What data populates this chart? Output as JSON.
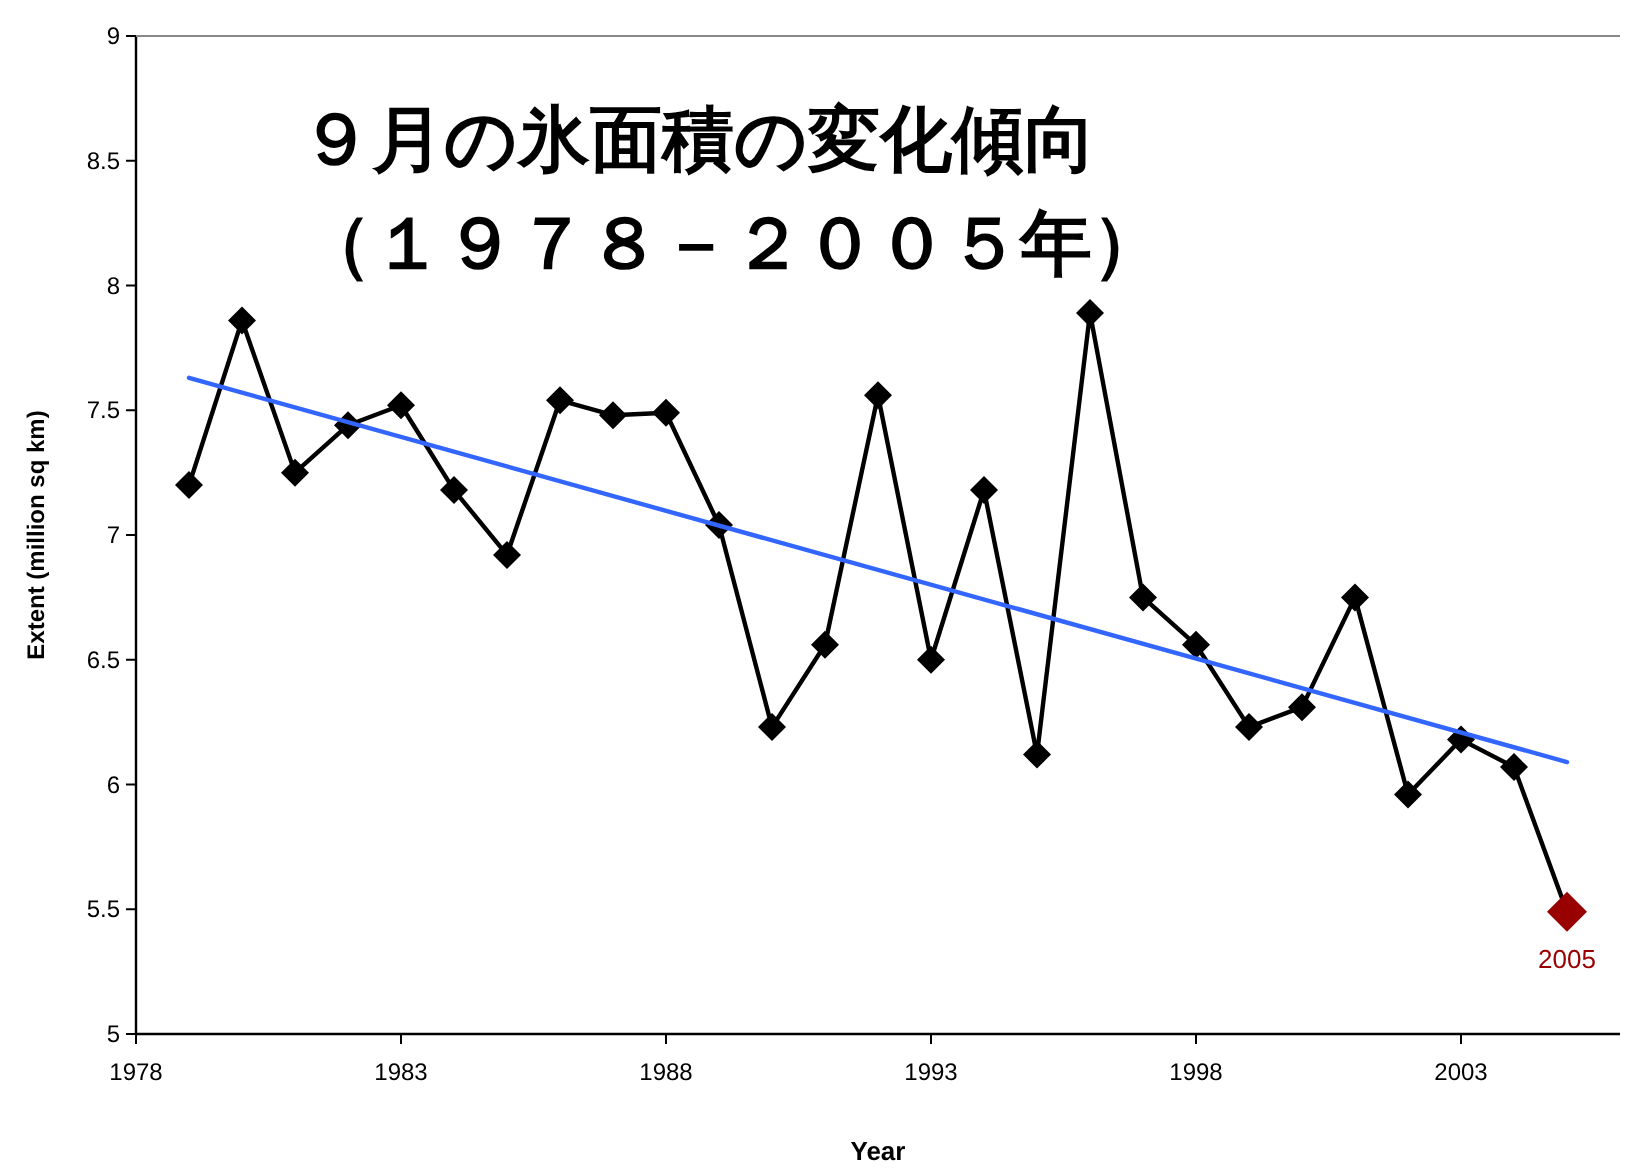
{
  "chart_data": {
    "type": "line",
    "title": "９月の氷面積の変化傾向",
    "subtitle": "（１９７８－２００５年）",
    "xlabel": "Year",
    "ylabel": "Extent (million sq km)",
    "xlim": [
      1978,
      2006
    ],
    "xticks": [
      1978,
      1983,
      1988,
      1993,
      1998,
      2003
    ],
    "ylim": [
      5,
      9
    ],
    "yticks": [
      5,
      5.5,
      6,
      6.5,
      7,
      7.5,
      8,
      8.5,
      9
    ],
    "marker": "diamond",
    "grid": false,
    "series": [
      {
        "color": "#000000",
        "x": [
          1979,
          1980,
          1981,
          1982,
          1983,
          1984,
          1985,
          1986,
          1987,
          1988,
          1989,
          1990,
          1991,
          1992,
          1993,
          1994,
          1995,
          1996,
          1997,
          1998,
          1999,
          2000,
          2001,
          2002,
          2003,
          2004,
          2005
        ],
        "values": [
          7.2,
          7.86,
          7.25,
          7.44,
          7.52,
          7.18,
          6.92,
          7.54,
          7.48,
          7.49,
          7.04,
          6.23,
          6.56,
          7.56,
          6.5,
          7.18,
          6.12,
          7.89,
          6.75,
          6.56,
          6.23,
          6.31,
          6.75,
          5.96,
          6.18,
          6.07,
          5.49
        ],
        "colors": [
          "#000000",
          "#000000",
          "#000000",
          "#000000",
          "#000000",
          "#000000",
          "#000000",
          "#000000",
          "#000000",
          "#000000",
          "#000000",
          "#000000",
          "#000000",
          "#000000",
          "#000000",
          "#000000",
          "#000000",
          "#000000",
          "#000000",
          "#000000",
          "#000000",
          "#000000",
          "#000000",
          "#000000",
          "#000000",
          "#000000",
          "#990000"
        ]
      },
      {
        "type": "line",
        "marker": "none",
        "color": "#3366ff",
        "x": [
          1979,
          2005
        ],
        "values": [
          7.63,
          6.09
        ]
      }
    ],
    "annotations": [
      {
        "text": "2005",
        "x": 2005,
        "y": 5.49
      }
    ]
  }
}
